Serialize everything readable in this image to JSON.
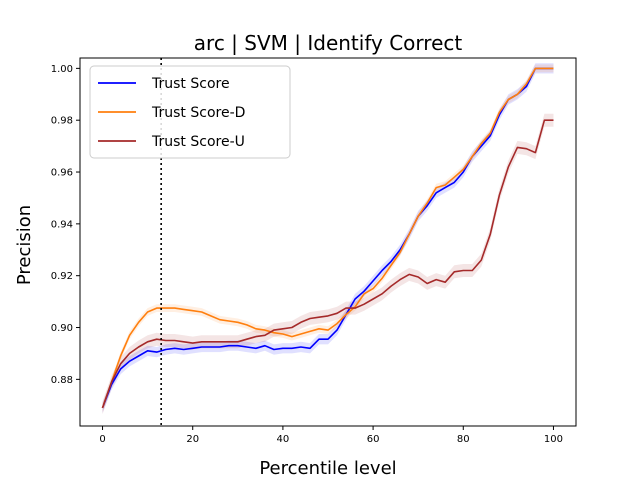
{
  "chart_data": {
    "type": "line",
    "title": "arc | SVM | Identify Correct",
    "xlabel": "Percentile level",
    "ylabel": "Precision",
    "xlim": [
      -5,
      105
    ],
    "ylim": [
      0.862,
      1.004
    ],
    "xticks": [
      0,
      20,
      40,
      60,
      80,
      100
    ],
    "yticks": [
      0.88,
      0.9,
      0.92,
      0.94,
      0.96,
      0.98,
      1.0
    ],
    "xtick_labels": [
      "0",
      "20",
      "40",
      "60",
      "80",
      "100"
    ],
    "ytick_labels": [
      "0.88",
      "0.90",
      "0.92",
      "0.94",
      "0.96",
      "0.98",
      "1.00"
    ],
    "grid": false,
    "legend_position": "top-left",
    "vline": {
      "x": 13,
      "style": "dotted",
      "color": "#000000"
    },
    "series": [
      {
        "name": "Trust Score",
        "color": "#0000ff",
        "band": 0.002,
        "x": [
          0,
          2,
          4,
          6,
          8,
          10,
          12,
          14,
          16,
          18,
          20,
          22,
          24,
          26,
          28,
          30,
          32,
          34,
          36,
          38,
          40,
          42,
          44,
          46,
          48,
          50,
          52,
          54,
          56,
          58,
          60,
          62,
          64,
          66,
          68,
          70,
          72,
          74,
          76,
          78,
          80,
          82,
          84,
          86,
          88,
          90,
          92,
          94,
          96,
          98,
          100
        ],
        "values": [
          0.869,
          0.878,
          0.884,
          0.887,
          0.889,
          0.891,
          0.8905,
          0.8915,
          0.892,
          0.8915,
          0.892,
          0.8925,
          0.8925,
          0.8925,
          0.893,
          0.893,
          0.8925,
          0.892,
          0.893,
          0.8915,
          0.892,
          0.892,
          0.8925,
          0.892,
          0.8955,
          0.8955,
          0.899,
          0.905,
          0.911,
          0.914,
          0.918,
          0.922,
          0.9255,
          0.93,
          0.936,
          0.943,
          0.947,
          0.952,
          0.954,
          0.956,
          0.96,
          0.966,
          0.97,
          0.974,
          0.982,
          0.988,
          0.99,
          0.993,
          1.0,
          1.0,
          1.0
        ]
      },
      {
        "name": "Trust Score-D",
        "color": "#ff7f0e",
        "band": 0.0015,
        "x": [
          0,
          2,
          4,
          6,
          8,
          10,
          12,
          14,
          16,
          18,
          20,
          22,
          24,
          26,
          28,
          30,
          32,
          34,
          36,
          38,
          40,
          42,
          44,
          46,
          48,
          50,
          52,
          54,
          56,
          58,
          60,
          62,
          64,
          66,
          68,
          70,
          72,
          74,
          76,
          78,
          80,
          82,
          84,
          86,
          88,
          90,
          92,
          94,
          96,
          98,
          100
        ],
        "values": [
          0.869,
          0.879,
          0.889,
          0.897,
          0.902,
          0.906,
          0.9075,
          0.9075,
          0.9075,
          0.907,
          0.9065,
          0.906,
          0.9045,
          0.903,
          0.9025,
          0.902,
          0.901,
          0.8995,
          0.899,
          0.898,
          0.8975,
          0.8965,
          0.8975,
          0.8985,
          0.8995,
          0.899,
          0.9015,
          0.905,
          0.908,
          0.913,
          0.915,
          0.919,
          0.924,
          0.929,
          0.936,
          0.943,
          0.948,
          0.954,
          0.955,
          0.958,
          0.961,
          0.966,
          0.971,
          0.975,
          0.983,
          0.988,
          0.99,
          0.994,
          1.0,
          1.0,
          1.0
        ]
      },
      {
        "name": "Trust Score-U",
        "color": "#a52a2a",
        "band": 0.0025,
        "x": [
          0,
          2,
          4,
          6,
          8,
          10,
          12,
          14,
          16,
          18,
          20,
          22,
          24,
          26,
          28,
          30,
          32,
          34,
          36,
          38,
          40,
          42,
          44,
          46,
          48,
          50,
          52,
          54,
          56,
          58,
          60,
          62,
          64,
          66,
          68,
          70,
          72,
          74,
          76,
          78,
          80,
          82,
          84,
          86,
          88,
          90,
          92,
          94,
          96,
          98,
          100
        ],
        "values": [
          0.869,
          0.879,
          0.886,
          0.89,
          0.8925,
          0.8945,
          0.8955,
          0.895,
          0.895,
          0.8945,
          0.894,
          0.8945,
          0.8945,
          0.8945,
          0.8945,
          0.8945,
          0.8955,
          0.8965,
          0.897,
          0.899,
          0.8995,
          0.9,
          0.902,
          0.9035,
          0.904,
          0.9045,
          0.9055,
          0.9075,
          0.9075,
          0.909,
          0.911,
          0.913,
          0.916,
          0.9185,
          0.9205,
          0.9195,
          0.917,
          0.9185,
          0.9175,
          0.9215,
          0.922,
          0.922,
          0.926,
          0.936,
          0.951,
          0.962,
          0.9695,
          0.969,
          0.9675,
          0.98,
          0.98
        ]
      }
    ]
  }
}
